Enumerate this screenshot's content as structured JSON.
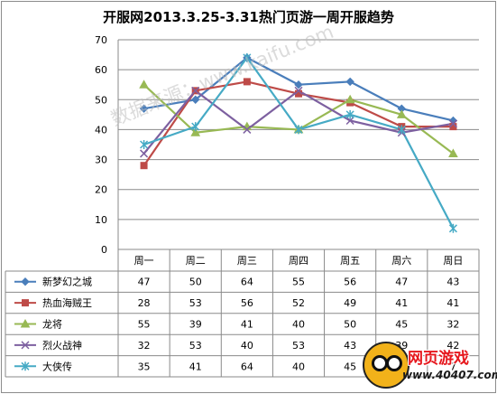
{
  "chart_data": {
    "type": "line",
    "title": "开服网2013.3.25-3.31热门页游一周开服趋势",
    "categories": [
      "周一",
      "周二",
      "周三",
      "周四",
      "周五",
      "周六",
      "周日"
    ],
    "ylim": [
      0,
      70
    ],
    "yticks": [
      0,
      10,
      20,
      30,
      40,
      50,
      60,
      70
    ],
    "grid": true,
    "legend_placement": "data-table-left",
    "series": [
      {
        "name": "新梦幻之城",
        "values": [
          47,
          50,
          64,
          55,
          56,
          47,
          43
        ],
        "color": "#4a7ebb",
        "marker": "diamond"
      },
      {
        "name": "热血海贼王",
        "values": [
          28,
          53,
          56,
          52,
          49,
          41,
          41
        ],
        "color": "#be4b48",
        "marker": "square"
      },
      {
        "name": "龙将",
        "values": [
          55,
          39,
          41,
          40,
          50,
          45,
          32
        ],
        "color": "#98b954",
        "marker": "triangle"
      },
      {
        "name": "烈火战神",
        "values": [
          32,
          53,
          40,
          53,
          43,
          39,
          42
        ],
        "color": "#7d60a0",
        "marker": "x"
      },
      {
        "name": "大侠传",
        "values": [
          35,
          41,
          64,
          40,
          45,
          40,
          7
        ],
        "color": "#46aac5",
        "marker": "star"
      }
    ]
  },
  "watermark": "数据来源：www.kaifu.com",
  "logo": {
    "text": "网页游戏",
    "url": "www.40407.com"
  }
}
